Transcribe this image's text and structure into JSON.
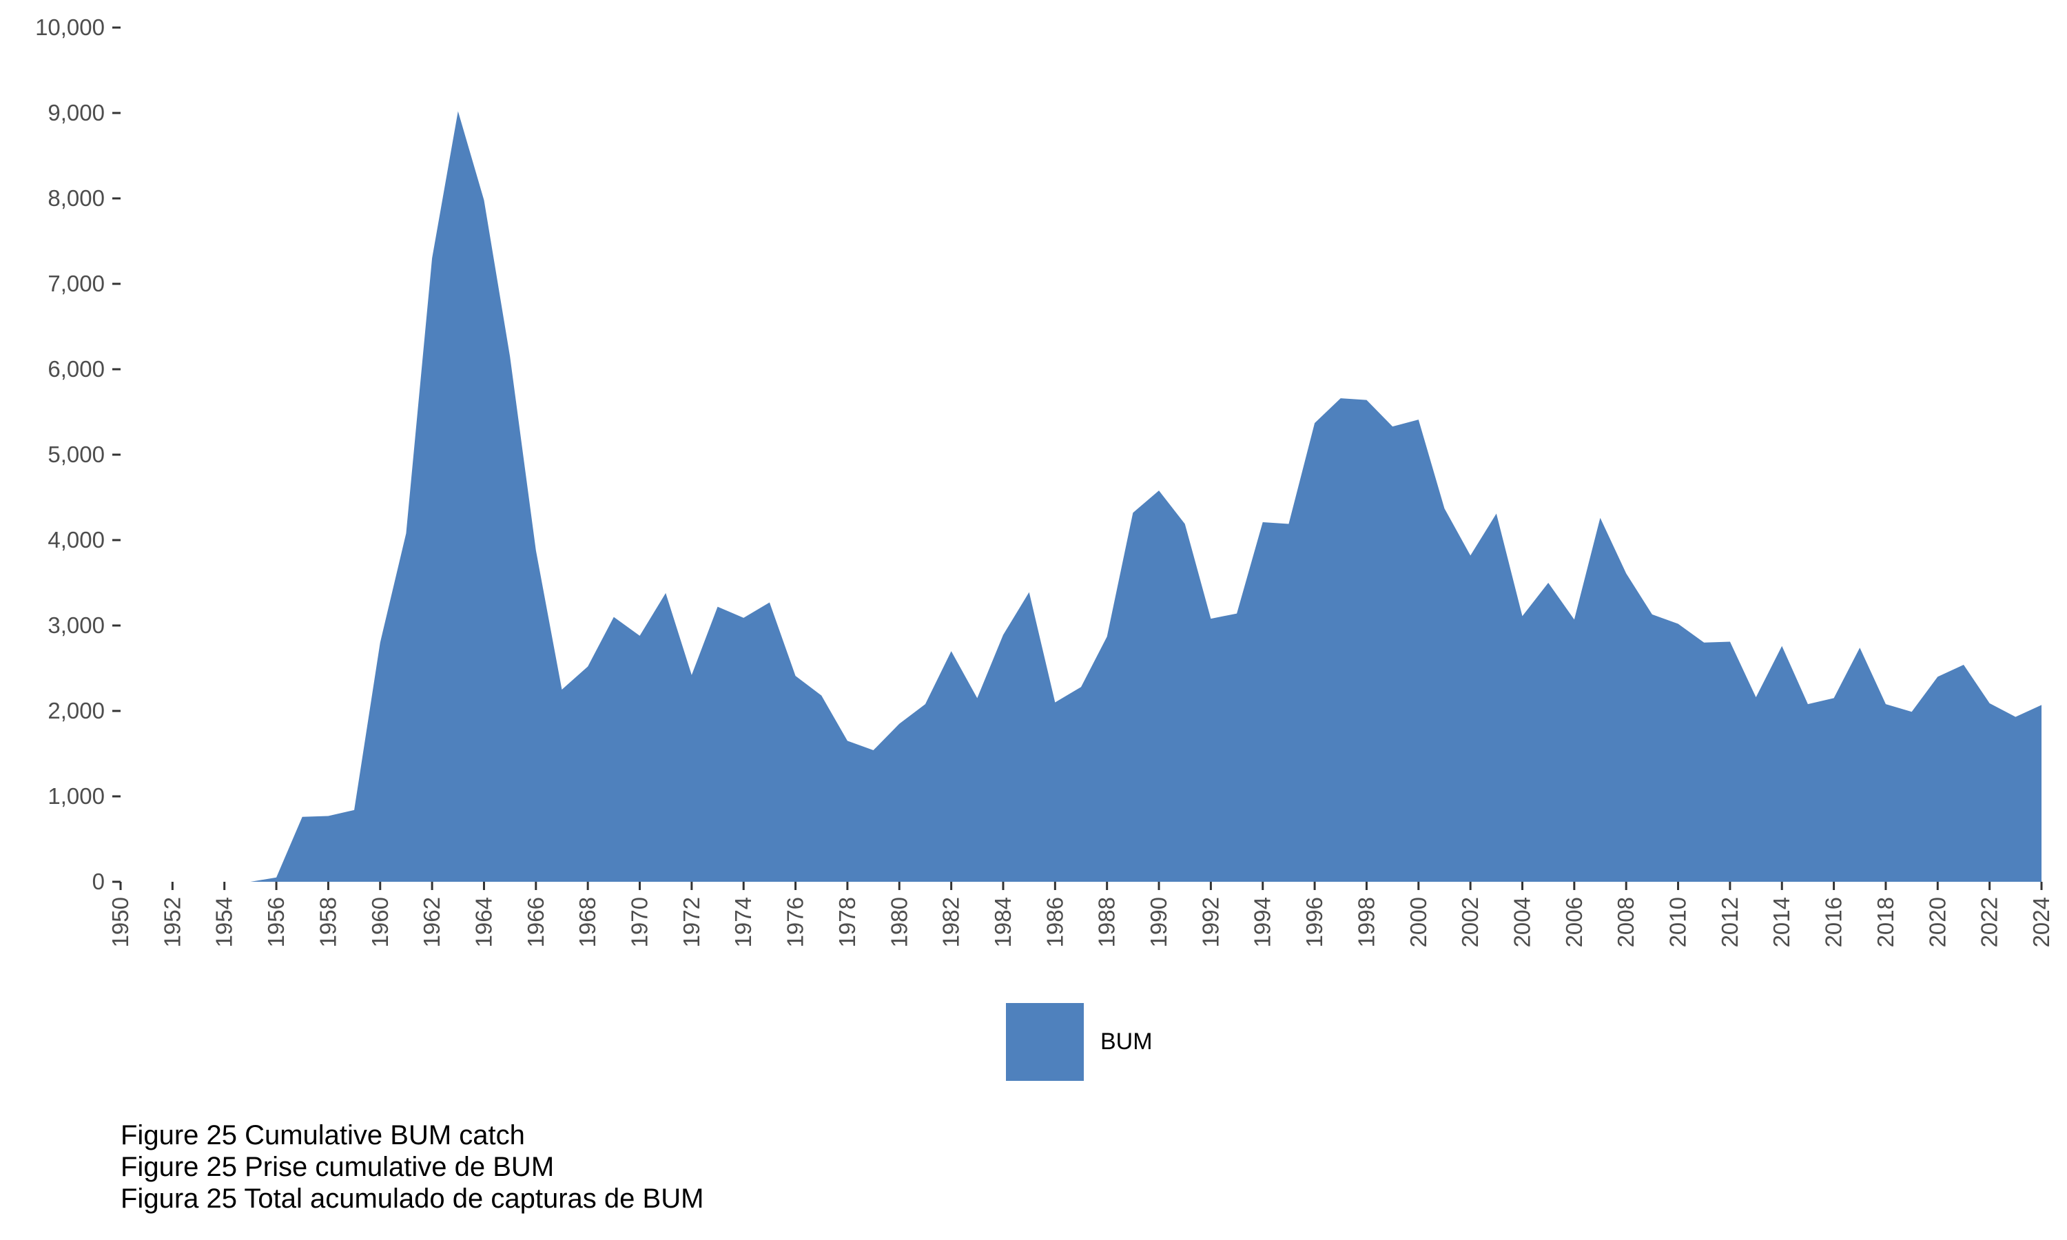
{
  "chart_data": {
    "type": "area",
    "title": "",
    "xlabel": "",
    "ylabel": "",
    "xlim": [
      1950,
      2024
    ],
    "ylim": [
      0,
      10000
    ],
    "y_ticks": [
      0,
      1000,
      2000,
      3000,
      4000,
      5000,
      6000,
      7000,
      8000,
      9000,
      10000
    ],
    "y_tick_labels": [
      "0",
      "1,000",
      "2,000",
      "3,000",
      "4,000",
      "5,000",
      "6,000",
      "7,000",
      "8,000",
      "9,000",
      "10,000"
    ],
    "x_ticks": [
      1950,
      1952,
      1954,
      1956,
      1958,
      1960,
      1962,
      1964,
      1966,
      1968,
      1970,
      1972,
      1974,
      1976,
      1978,
      1980,
      1982,
      1984,
      1986,
      1988,
      1990,
      1992,
      1994,
      1996,
      1998,
      2000,
      2002,
      2004,
      2006,
      2008,
      2010,
      2012,
      2014,
      2016,
      2018,
      2020,
      2022,
      2024
    ],
    "grid": false,
    "legend_position": "bottom",
    "fill_color": "#4f81bd",
    "series": [
      {
        "name": "BUM",
        "x": [
          1955,
          1956,
          1957,
          1958,
          1959,
          1960,
          1961,
          1962,
          1963,
          1964,
          1965,
          1966,
          1967,
          1968,
          1969,
          1970,
          1971,
          1972,
          1973,
          1974,
          1975,
          1976,
          1977,
          1978,
          1979,
          1980,
          1981,
          1982,
          1983,
          1984,
          1985,
          1986,
          1987,
          1988,
          1989,
          1990,
          1991,
          1992,
          1993,
          1994,
          1995,
          1996,
          1997,
          1998,
          1999,
          2000,
          2001,
          2002,
          2003,
          2004,
          2005,
          2006,
          2007,
          2008,
          2009,
          2010,
          2011,
          2012,
          2013,
          2014,
          2015,
          2016,
          2017,
          2018,
          2019,
          2020,
          2021,
          2022,
          2023,
          2024
        ],
        "values": [
          0,
          50,
          760,
          770,
          840,
          2800,
          4080,
          7300,
          9020,
          7980,
          6150,
          3880,
          2250,
          2520,
          3100,
          2880,
          3380,
          2420,
          3220,
          3090,
          3270,
          2410,
          2180,
          1650,
          1540,
          1850,
          2080,
          2700,
          2150,
          2890,
          3390,
          2100,
          2280,
          2870,
          4320,
          4580,
          4190,
          3080,
          3140,
          4210,
          4190,
          5370,
          5660,
          5640,
          5330,
          5410,
          4370,
          3820,
          4310,
          3110,
          3500,
          3070,
          4260,
          3610,
          3130,
          3020,
          2800,
          2810,
          2160,
          2760,
          2080,
          2150,
          2740,
          2080,
          1990,
          2400,
          2540,
          2090,
          1930,
          2070
        ]
      }
    ]
  },
  "legend": {
    "label": "BUM"
  },
  "caption": {
    "line1": "Figure 25 Cumulative BUM catch",
    "line2": "Figure 25 Prise cumulative de BUM",
    "line3": "Figura 25 Total acumulado de capturas de BUM"
  }
}
